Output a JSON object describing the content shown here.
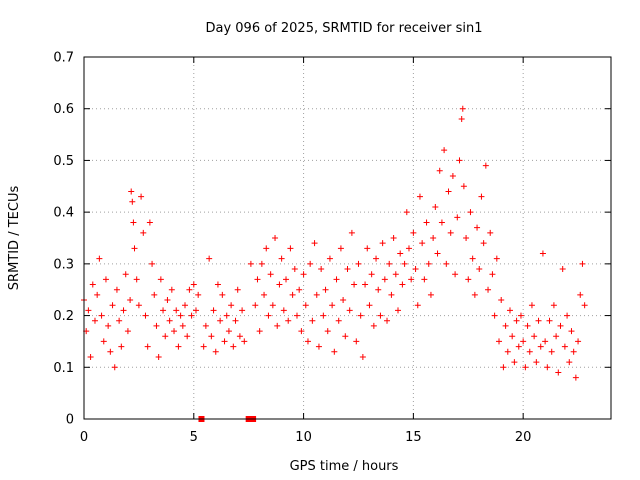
{
  "chart_data": {
    "type": "scatter",
    "title": "Day 096 of 2025, SRMTID for receiver sin1",
    "xlabel": "GPS time / hours",
    "ylabel": "SRMTID / TECUs",
    "xlim": [
      0,
      24
    ],
    "ylim": [
      0,
      0.7
    ],
    "xticks": [
      0,
      5,
      10,
      15,
      20
    ],
    "xtick_labels": [
      "0",
      "5",
      "10",
      "15",
      "20"
    ],
    "yticks": [
      0,
      0.1,
      0.2,
      0.3,
      0.4,
      0.5,
      0.6,
      0.7
    ],
    "ytick_labels": [
      "0",
      "0.1",
      "0.2",
      "0.3",
      "0.4",
      "0.5",
      "0.6",
      "0.7"
    ],
    "grid": true,
    "marker_color": "#ff0000",
    "marker": "plus",
    "series": [
      {
        "name": "SRMTID",
        "points": [
          [
            0.0,
            0.23
          ],
          [
            0.1,
            0.17
          ],
          [
            0.2,
            0.21
          ],
          [
            0.3,
            0.12
          ],
          [
            0.4,
            0.26
          ],
          [
            0.5,
            0.19
          ],
          [
            0.6,
            0.24
          ],
          [
            0.7,
            0.31
          ],
          [
            0.8,
            0.2
          ],
          [
            0.9,
            0.15
          ],
          [
            1.0,
            0.27
          ],
          [
            1.1,
            0.18
          ],
          [
            1.2,
            0.13
          ],
          [
            1.3,
            0.22
          ],
          [
            1.4,
            0.1
          ],
          [
            1.5,
            0.25
          ],
          [
            1.6,
            0.19
          ],
          [
            1.7,
            0.14
          ],
          [
            1.8,
            0.21
          ],
          [
            1.9,
            0.28
          ],
          [
            2.0,
            0.17
          ],
          [
            2.1,
            0.23
          ],
          [
            2.15,
            0.44
          ],
          [
            2.2,
            0.42
          ],
          [
            2.25,
            0.38
          ],
          [
            2.3,
            0.33
          ],
          [
            2.4,
            0.27
          ],
          [
            2.5,
            0.22
          ],
          [
            2.6,
            0.43
          ],
          [
            2.7,
            0.36
          ],
          [
            2.8,
            0.2
          ],
          [
            2.9,
            0.14
          ],
          [
            3.0,
            0.38
          ],
          [
            3.1,
            0.3
          ],
          [
            3.2,
            0.24
          ],
          [
            3.3,
            0.18
          ],
          [
            3.4,
            0.12
          ],
          [
            3.5,
            0.27
          ],
          [
            3.6,
            0.21
          ],
          [
            3.7,
            0.16
          ],
          [
            3.8,
            0.23
          ],
          [
            3.9,
            0.19
          ],
          [
            4.0,
            0.25
          ],
          [
            4.1,
            0.17
          ],
          [
            4.2,
            0.21
          ],
          [
            4.3,
            0.14
          ],
          [
            4.4,
            0.2
          ],
          [
            4.5,
            0.18
          ],
          [
            4.6,
            0.22
          ],
          [
            4.7,
            0.16
          ],
          [
            4.8,
            0.25
          ],
          [
            4.9,
            0.2
          ],
          [
            5.0,
            0.26
          ],
          [
            5.1,
            0.21
          ],
          [
            5.2,
            0.24
          ],
          [
            5.35,
            0.0
          ],
          [
            5.45,
            0.14
          ],
          [
            5.55,
            0.18
          ],
          [
            5.7,
            0.31
          ],
          [
            5.8,
            0.16
          ],
          [
            5.9,
            0.21
          ],
          [
            6.0,
            0.13
          ],
          [
            6.1,
            0.26
          ],
          [
            6.2,
            0.19
          ],
          [
            6.3,
            0.24
          ],
          [
            6.4,
            0.15
          ],
          [
            6.5,
            0.2
          ],
          [
            6.6,
            0.17
          ],
          [
            6.7,
            0.22
          ],
          [
            6.8,
            0.14
          ],
          [
            6.9,
            0.19
          ],
          [
            7.0,
            0.25
          ],
          [
            7.1,
            0.16
          ],
          [
            7.2,
            0.21
          ],
          [
            7.3,
            0.15
          ],
          [
            7.5,
            0.0
          ],
          [
            7.6,
            0.3
          ],
          [
            7.7,
            0.0
          ],
          [
            7.8,
            0.22
          ],
          [
            7.9,
            0.27
          ],
          [
            8.0,
            0.17
          ],
          [
            8.1,
            0.3
          ],
          [
            8.2,
            0.24
          ],
          [
            8.3,
            0.33
          ],
          [
            8.4,
            0.2
          ],
          [
            8.5,
            0.28
          ],
          [
            8.6,
            0.22
          ],
          [
            8.7,
            0.35
          ],
          [
            8.8,
            0.18
          ],
          [
            8.9,
            0.26
          ],
          [
            9.0,
            0.31
          ],
          [
            9.1,
            0.21
          ],
          [
            9.2,
            0.27
          ],
          [
            9.3,
            0.19
          ],
          [
            9.4,
            0.33
          ],
          [
            9.5,
            0.24
          ],
          [
            9.6,
            0.29
          ],
          [
            9.7,
            0.2
          ],
          [
            9.8,
            0.25
          ],
          [
            9.9,
            0.17
          ],
          [
            10.0,
            0.28
          ],
          [
            10.1,
            0.22
          ],
          [
            10.2,
            0.15
          ],
          [
            10.3,
            0.3
          ],
          [
            10.4,
            0.19
          ],
          [
            10.5,
            0.34
          ],
          [
            10.6,
            0.24
          ],
          [
            10.7,
            0.14
          ],
          [
            10.8,
            0.29
          ],
          [
            10.9,
            0.2
          ],
          [
            11.0,
            0.25
          ],
          [
            11.1,
            0.17
          ],
          [
            11.2,
            0.31
          ],
          [
            11.3,
            0.22
          ],
          [
            11.4,
            0.13
          ],
          [
            11.5,
            0.27
          ],
          [
            11.6,
            0.19
          ],
          [
            11.7,
            0.33
          ],
          [
            11.8,
            0.23
          ],
          [
            11.9,
            0.16
          ],
          [
            12.0,
            0.29
          ],
          [
            12.1,
            0.21
          ],
          [
            12.2,
            0.36
          ],
          [
            12.3,
            0.26
          ],
          [
            12.4,
            0.15
          ],
          [
            12.5,
            0.3
          ],
          [
            12.6,
            0.2
          ],
          [
            12.7,
            0.12
          ],
          [
            12.8,
            0.26
          ],
          [
            12.9,
            0.33
          ],
          [
            13.0,
            0.22
          ],
          [
            13.1,
            0.28
          ],
          [
            13.2,
            0.18
          ],
          [
            13.3,
            0.31
          ],
          [
            13.4,
            0.25
          ],
          [
            13.5,
            0.2
          ],
          [
            13.6,
            0.34
          ],
          [
            13.7,
            0.27
          ],
          [
            13.8,
            0.19
          ],
          [
            13.9,
            0.3
          ],
          [
            14.0,
            0.24
          ],
          [
            14.1,
            0.35
          ],
          [
            14.2,
            0.28
          ],
          [
            14.3,
            0.21
          ],
          [
            14.4,
            0.32
          ],
          [
            14.5,
            0.26
          ],
          [
            14.6,
            0.3
          ],
          [
            14.7,
            0.4
          ],
          [
            14.8,
            0.33
          ],
          [
            14.9,
            0.27
          ],
          [
            15.0,
            0.36
          ],
          [
            15.1,
            0.29
          ],
          [
            15.2,
            0.22
          ],
          [
            15.3,
            0.43
          ],
          [
            15.4,
            0.34
          ],
          [
            15.5,
            0.27
          ],
          [
            15.6,
            0.38
          ],
          [
            15.7,
            0.3
          ],
          [
            15.8,
            0.24
          ],
          [
            15.9,
            0.35
          ],
          [
            16.0,
            0.41
          ],
          [
            16.1,
            0.32
          ],
          [
            16.2,
            0.48
          ],
          [
            16.3,
            0.38
          ],
          [
            16.4,
            0.52
          ],
          [
            16.5,
            0.3
          ],
          [
            16.6,
            0.44
          ],
          [
            16.7,
            0.36
          ],
          [
            16.8,
            0.47
          ],
          [
            16.9,
            0.28
          ],
          [
            17.0,
            0.39
          ],
          [
            17.1,
            0.5
          ],
          [
            17.2,
            0.58
          ],
          [
            17.25,
            0.6
          ],
          [
            17.3,
            0.45
          ],
          [
            17.4,
            0.35
          ],
          [
            17.5,
            0.27
          ],
          [
            17.6,
            0.4
          ],
          [
            17.7,
            0.31
          ],
          [
            17.8,
            0.24
          ],
          [
            17.9,
            0.37
          ],
          [
            18.0,
            0.29
          ],
          [
            18.1,
            0.43
          ],
          [
            18.2,
            0.34
          ],
          [
            18.3,
            0.49
          ],
          [
            18.4,
            0.25
          ],
          [
            18.5,
            0.36
          ],
          [
            18.6,
            0.28
          ],
          [
            18.7,
            0.2
          ],
          [
            18.8,
            0.31
          ],
          [
            18.9,
            0.15
          ],
          [
            19.0,
            0.23
          ],
          [
            19.1,
            0.1
          ],
          [
            19.2,
            0.18
          ],
          [
            19.3,
            0.13
          ],
          [
            19.4,
            0.21
          ],
          [
            19.5,
            0.16
          ],
          [
            19.6,
            0.11
          ],
          [
            19.7,
            0.19
          ],
          [
            19.8,
            0.14
          ],
          [
            19.9,
            0.2
          ],
          [
            20.0,
            0.15
          ],
          [
            20.1,
            0.1
          ],
          [
            20.2,
            0.18
          ],
          [
            20.3,
            0.13
          ],
          [
            20.4,
            0.22
          ],
          [
            20.5,
            0.16
          ],
          [
            20.6,
            0.11
          ],
          [
            20.7,
            0.19
          ],
          [
            20.8,
            0.14
          ],
          [
            20.9,
            0.32
          ],
          [
            21.0,
            0.15
          ],
          [
            21.1,
            0.1
          ],
          [
            21.2,
            0.19
          ],
          [
            21.3,
            0.13
          ],
          [
            21.4,
            0.22
          ],
          [
            21.5,
            0.16
          ],
          [
            21.6,
            0.09
          ],
          [
            21.7,
            0.18
          ],
          [
            21.8,
            0.29
          ],
          [
            21.9,
            0.14
          ],
          [
            22.0,
            0.2
          ],
          [
            22.1,
            0.11
          ],
          [
            22.2,
            0.17
          ],
          [
            22.3,
            0.13
          ],
          [
            22.4,
            0.08
          ],
          [
            22.5,
            0.15
          ],
          [
            22.6,
            0.24
          ],
          [
            22.7,
            0.3
          ],
          [
            22.8,
            0.22
          ]
        ]
      }
    ]
  }
}
